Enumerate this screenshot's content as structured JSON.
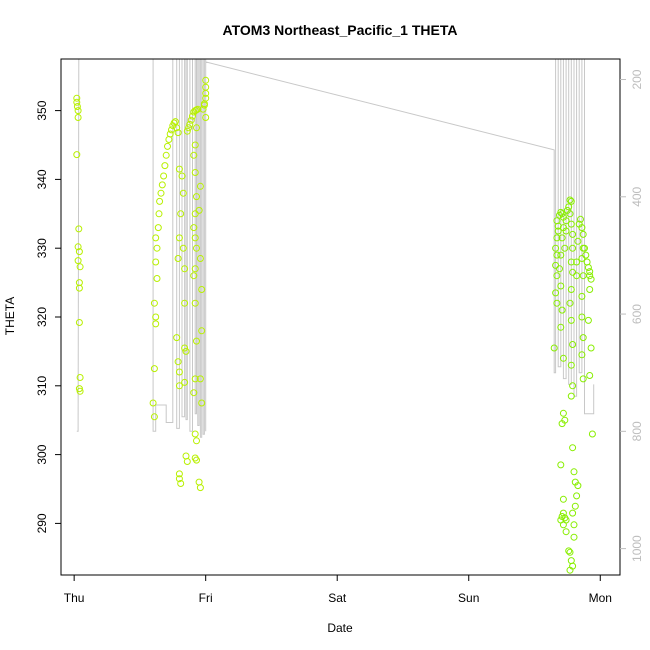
{
  "chart_data": {
    "type": "scatter",
    "title": "ATOM3 Northeast_Pacific_1 THETA",
    "xlabel": "Date",
    "ylabel": "THETA",
    "x_ticks": [
      "Thu",
      "Fri",
      "Sat",
      "Sun",
      "Mon"
    ],
    "y_ticks": [
      290,
      300,
      310,
      320,
      330,
      340,
      350
    ],
    "y2_ticks": [
      200,
      400,
      600,
      800,
      1000
    ],
    "xlim": [
      -0.1,
      4.15
    ],
    "ylim": [
      282.5,
      357.5
    ],
    "y2lim": [
      1045,
      165
    ],
    "grid": false,
    "colors": {
      "theta_points": "#b8f000",
      "theta_points_late": "#88ee00",
      "pressure_line": "#c8c8c8",
      "right_axis": "#bdbdbd"
    },
    "series": [
      {
        "kind": "points",
        "points": [
          [
            0.02,
            351.8
          ],
          [
            0.02,
            351.2
          ],
          [
            0.025,
            350.6
          ],
          [
            0.03,
            350.0
          ],
          [
            0.03,
            349.0
          ],
          [
            0.02,
            343.6
          ],
          [
            0.035,
            332.8
          ],
          [
            0.03,
            330.2
          ],
          [
            0.04,
            329.5
          ],
          [
            0.03,
            328.2
          ],
          [
            0.045,
            327.3
          ],
          [
            0.04,
            325.0
          ],
          [
            0.04,
            324.2
          ],
          [
            0.04,
            319.2
          ],
          [
            0.045,
            311.2
          ],
          [
            0.04,
            309.6
          ],
          [
            0.045,
            309.2
          ],
          [
            0.62,
            331.5
          ],
          [
            0.63,
            330.0
          ],
          [
            0.62,
            328.0
          ],
          [
            0.63,
            325.6
          ],
          [
            0.61,
            322.0
          ],
          [
            0.62,
            320.0
          ],
          [
            0.62,
            319.0
          ],
          [
            0.61,
            312.5
          ],
          [
            0.6,
            307.5
          ],
          [
            0.61,
            305.5
          ],
          [
            0.64,
            333.0
          ],
          [
            0.645,
            335.0
          ],
          [
            0.65,
            336.8
          ],
          [
            0.66,
            338.0
          ],
          [
            0.67,
            339.2
          ],
          [
            0.68,
            340.5
          ],
          [
            0.69,
            342.0
          ],
          [
            0.7,
            343.5
          ],
          [
            0.71,
            344.8
          ],
          [
            0.72,
            345.8
          ],
          [
            0.73,
            346.6
          ],
          [
            0.74,
            347.2
          ],
          [
            0.75,
            347.8
          ],
          [
            0.76,
            348.2
          ],
          [
            0.77,
            348.4
          ],
          [
            0.78,
            347.5
          ],
          [
            0.79,
            346.8
          ],
          [
            0.8,
            341.5
          ],
          [
            0.81,
            335.0
          ],
          [
            0.8,
            331.5
          ],
          [
            0.79,
            328.5
          ],
          [
            0.78,
            317.0
          ],
          [
            0.79,
            313.5
          ],
          [
            0.8,
            312.0
          ],
          [
            0.8,
            310.0
          ],
          [
            0.8,
            297.2
          ],
          [
            0.8,
            296.5
          ],
          [
            0.81,
            295.8
          ],
          [
            0.82,
            340.5
          ],
          [
            0.83,
            338.0
          ],
          [
            0.83,
            330.0
          ],
          [
            0.84,
            327.0
          ],
          [
            0.84,
            322.0
          ],
          [
            0.84,
            315.5
          ],
          [
            0.85,
            315.0
          ],
          [
            0.84,
            310.5
          ],
          [
            0.85,
            299.8
          ],
          [
            0.86,
            299.0
          ],
          [
            0.86,
            347.0
          ],
          [
            0.87,
            347.5
          ],
          [
            0.88,
            348.0
          ],
          [
            0.89,
            348.6
          ],
          [
            0.9,
            349.2
          ],
          [
            0.91,
            349.8
          ],
          [
            0.92,
            350.0
          ],
          [
            0.93,
            350.1
          ],
          [
            0.94,
            350.2
          ],
          [
            0.93,
            347.5
          ],
          [
            0.92,
            345.0
          ],
          [
            0.91,
            343.5
          ],
          [
            0.92,
            341.0
          ],
          [
            0.93,
            337.5
          ],
          [
            0.92,
            335.0
          ],
          [
            0.91,
            333.0
          ],
          [
            0.92,
            331.5
          ],
          [
            0.93,
            330.0
          ],
          [
            0.92,
            327.0
          ],
          [
            0.91,
            326.0
          ],
          [
            0.92,
            322.0
          ],
          [
            0.93,
            316.5
          ],
          [
            0.92,
            311.0
          ],
          [
            0.91,
            309.0
          ],
          [
            0.92,
            303.0
          ],
          [
            0.93,
            302.0
          ],
          [
            0.92,
            299.5
          ],
          [
            0.93,
            299.2
          ],
          [
            0.95,
            296.0
          ],
          [
            0.96,
            295.2
          ],
          [
            0.95,
            335.5
          ],
          [
            0.96,
            339.0
          ],
          [
            0.96,
            328.5
          ],
          [
            0.97,
            324.0
          ],
          [
            0.97,
            318.0
          ],
          [
            0.96,
            311.0
          ],
          [
            0.97,
            307.5
          ],
          [
            0.98,
            350.2
          ],
          [
            0.99,
            351.0
          ],
          [
            1.0,
            351.8
          ],
          [
            1.0,
            352.5
          ],
          [
            1.0,
            353.4
          ],
          [
            1.0,
            354.4
          ],
          [
            0.99,
            350.8
          ],
          [
            1.0,
            349.0
          ]
        ]
      },
      {
        "kind": "points",
        "points": [
          [
            3.67,
            334.0
          ],
          [
            3.68,
            333.2
          ],
          [
            3.68,
            332.5
          ],
          [
            3.67,
            331.5
          ],
          [
            3.66,
            330.0
          ],
          [
            3.67,
            329.0
          ],
          [
            3.66,
            327.5
          ],
          [
            3.67,
            326.0
          ],
          [
            3.66,
            323.5
          ],
          [
            3.67,
            322.0
          ],
          [
            3.65,
            315.5
          ],
          [
            3.69,
            334.8
          ],
          [
            3.7,
            335.2
          ],
          [
            3.71,
            335.0
          ],
          [
            3.72,
            334.5
          ],
          [
            3.72,
            333.0
          ],
          [
            3.71,
            331.5
          ],
          [
            3.7,
            329.0
          ],
          [
            3.69,
            327.0
          ],
          [
            3.7,
            324.5
          ],
          [
            3.71,
            321.0
          ],
          [
            3.7,
            318.5
          ],
          [
            3.72,
            314.0
          ],
          [
            3.71,
            304.5
          ],
          [
            3.7,
            298.5
          ],
          [
            3.72,
            306.0
          ],
          [
            3.73,
            305.0
          ],
          [
            3.73,
            330.0
          ],
          [
            3.74,
            332.5
          ],
          [
            3.74,
            334.0
          ],
          [
            3.75,
            335.5
          ],
          [
            3.76,
            336.0
          ],
          [
            3.77,
            337.0
          ],
          [
            3.78,
            336.8
          ],
          [
            3.77,
            335.0
          ],
          [
            3.78,
            333.5
          ],
          [
            3.79,
            332.0
          ],
          [
            3.79,
            330.0
          ],
          [
            3.78,
            328.0
          ],
          [
            3.79,
            326.5
          ],
          [
            3.78,
            324.0
          ],
          [
            3.77,
            322.0
          ],
          [
            3.78,
            319.5
          ],
          [
            3.79,
            316.0
          ],
          [
            3.78,
            313.0
          ],
          [
            3.79,
            310.0
          ],
          [
            3.78,
            308.5
          ],
          [
            3.79,
            301.0
          ],
          [
            3.8,
            297.5
          ],
          [
            3.81,
            296.0
          ],
          [
            3.82,
            328.0
          ],
          [
            3.82,
            326.0
          ],
          [
            3.83,
            331.0
          ],
          [
            3.84,
            333.5
          ],
          [
            3.85,
            334.2
          ],
          [
            3.86,
            333.0
          ],
          [
            3.87,
            332.0
          ],
          [
            3.87,
            330.0
          ],
          [
            3.86,
            328.5
          ],
          [
            3.87,
            326.0
          ],
          [
            3.86,
            323.0
          ],
          [
            3.86,
            320.0
          ],
          [
            3.87,
            317.0
          ],
          [
            3.86,
            314.5
          ],
          [
            3.87,
            311.0
          ],
          [
            3.88,
            330.0
          ],
          [
            3.89,
            329.0
          ],
          [
            3.9,
            328.0
          ],
          [
            3.91,
            327.2
          ],
          [
            3.92,
            326.6
          ],
          [
            3.92,
            326.0
          ],
          [
            3.93,
            325.5
          ],
          [
            3.92,
            324.0
          ],
          [
            3.91,
            319.5
          ],
          [
            3.93,
            315.5
          ],
          [
            3.92,
            311.5
          ],
          [
            3.94,
            303.0
          ],
          [
            3.7,
            290.5
          ],
          [
            3.71,
            291.0
          ],
          [
            3.72,
            291.5
          ],
          [
            3.73,
            290.8
          ],
          [
            3.72,
            289.8
          ],
          [
            3.74,
            288.8
          ],
          [
            3.76,
            286.0
          ],
          [
            3.77,
            285.8
          ],
          [
            3.78,
            284.6
          ],
          [
            3.79,
            283.8
          ],
          [
            3.77,
            283.2
          ],
          [
            3.79,
            291.5
          ],
          [
            3.8,
            289.8
          ],
          [
            3.8,
            288.0
          ],
          [
            3.81,
            292.5
          ],
          [
            3.82,
            294.0
          ],
          [
            3.83,
            295.5
          ],
          [
            3.72,
            293.5
          ],
          [
            3.74,
            290.5
          ]
        ]
      },
      {
        "kind": "line",
        "points": [
          [
            0.02,
            800
          ],
          [
            0.025,
            800
          ],
          [
            0.03,
            800
          ],
          [
            0.035,
            165
          ],
          [
            0.6,
            165
          ],
          [
            0.6,
            800
          ],
          [
            0.62,
            800
          ],
          [
            0.62,
            770
          ],
          [
            0.62,
            755
          ],
          [
            0.68,
            755
          ],
          [
            0.7,
            755
          ],
          [
            0.7,
            785
          ],
          [
            0.73,
            785
          ],
          [
            0.75,
            785
          ],
          [
            0.75,
            165
          ],
          [
            0.78,
            165
          ],
          [
            0.78,
            795
          ],
          [
            0.8,
            795
          ],
          [
            0.8,
            165
          ],
          [
            0.82,
            165
          ],
          [
            0.82,
            775
          ],
          [
            0.84,
            775
          ],
          [
            0.84,
            165
          ],
          [
            0.85,
            165
          ],
          [
            0.85,
            780
          ],
          [
            0.86,
            780
          ],
          [
            0.86,
            165
          ],
          [
            0.88,
            165
          ],
          [
            0.88,
            800
          ],
          [
            0.9,
            800
          ],
          [
            0.9,
            165
          ],
          [
            0.92,
            165
          ],
          [
            0.92,
            770
          ],
          [
            0.93,
            770
          ],
          [
            0.93,
            165
          ],
          [
            0.94,
            165
          ],
          [
            0.94,
            790
          ],
          [
            0.95,
            790
          ],
          [
            0.95,
            165
          ],
          [
            0.96,
            165
          ],
          [
            0.96,
            810
          ],
          [
            0.97,
            810
          ],
          [
            0.97,
            165
          ],
          [
            0.98,
            165
          ],
          [
            0.98,
            805
          ],
          [
            0.99,
            805
          ],
          [
            0.99,
            165
          ],
          [
            1.0,
            165
          ],
          [
            1.0,
            800
          ],
          [
            1.0,
            170
          ],
          [
            3.65,
            320
          ],
          [
            3.65,
            700
          ],
          [
            3.66,
            700
          ],
          [
            3.66,
            165
          ],
          [
            3.68,
            165
          ],
          [
            3.68,
            690
          ],
          [
            3.7,
            690
          ],
          [
            3.7,
            165
          ],
          [
            3.72,
            165
          ],
          [
            3.72,
            710
          ],
          [
            3.74,
            710
          ],
          [
            3.74,
            165
          ],
          [
            3.76,
            165
          ],
          [
            3.76,
            720
          ],
          [
            3.78,
            720
          ],
          [
            3.78,
            165
          ],
          [
            3.8,
            165
          ],
          [
            3.8,
            740
          ],
          [
            3.82,
            740
          ],
          [
            3.82,
            165
          ],
          [
            3.84,
            165
          ],
          [
            3.84,
            700
          ],
          [
            3.86,
            700
          ],
          [
            3.86,
            165
          ],
          [
            3.88,
            165
          ],
          [
            3.88,
            770
          ],
          [
            3.95,
            770
          ],
          [
            3.95,
            720
          ]
        ]
      }
    ]
  }
}
